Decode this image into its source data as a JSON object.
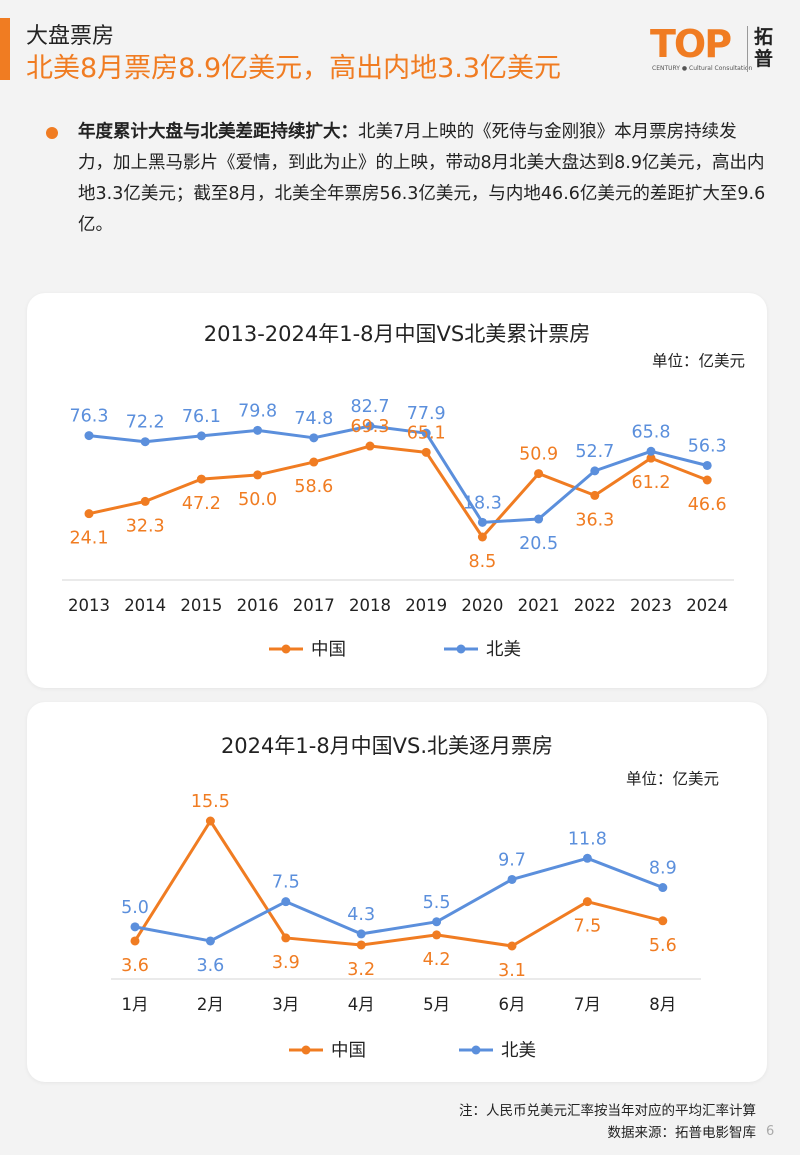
{
  "header": {
    "section_tag": "大盘票房",
    "headline": "北美8月票房8.9亿美元，高出内地3.3亿美元"
  },
  "logo": {
    "mark": "TOP",
    "sub": "CENTURY ● Cultural Consultation",
    "cn": "拓普"
  },
  "summary": {
    "lead": "年度累计大盘与北美差距持续扩大：",
    "body": "北美7月上映的《死侍与金刚狼》本月票房持续发力，加上黑马影片《爱情，到此为止》的上映，带动8月北美大盘达到8.9亿美元，高出内地3.3亿美元；截至8月，北美全年票房56.3亿美元，与内地46.6亿美元的差距扩大至9.6亿。"
  },
  "colors": {
    "china": "#f07c22",
    "na": "#5b8fdc",
    "accent": "#f07c22"
  },
  "chart_data": [
    {
      "type": "line",
      "title": "2013-2024年1-8月中国VS北美累计票房",
      "unit": "单位：亿美元",
      "categories": [
        "2013",
        "2014",
        "2015",
        "2016",
        "2017",
        "2018",
        "2019",
        "2020",
        "2021",
        "2022",
        "2023",
        "2024"
      ],
      "series": [
        {
          "name": "中国",
          "color": "#f07c22",
          "values": [
            24.1,
            32.3,
            47.2,
            50.0,
            58.6,
            69.3,
            65.1,
            8.5,
            50.9,
            36.3,
            61.2,
            46.6
          ],
          "labels": [
            "24.1",
            "32.3",
            "47.2",
            "50.0",
            "58.6",
            "69.3",
            "65.1",
            "8.5",
            "50.9",
            "36.3",
            "61.2",
            "46.6"
          ]
        },
        {
          "name": "北美",
          "color": "#5b8fdc",
          "values": [
            76.3,
            72.2,
            76.1,
            79.8,
            74.8,
            82.7,
            77.9,
            18.3,
            20.5,
            52.7,
            65.8,
            56.3
          ],
          "labels": [
            "76.3",
            "72.2",
            "76.1",
            "79.8",
            "74.8",
            "82.7",
            "77.9",
            "18.3",
            "20.5",
            "52.7",
            "65.8",
            "56.3"
          ]
        }
      ]
    },
    {
      "type": "line",
      "title": "2024年1-8月中国VS.北美逐月票房",
      "unit": "单位：亿美元",
      "categories": [
        "1月",
        "2月",
        "3月",
        "4月",
        "5月",
        "6月",
        "7月",
        "8月"
      ],
      "series": [
        {
          "name": "中国",
          "color": "#f07c22",
          "values": [
            3.6,
            15.5,
            3.9,
            3.2,
            4.2,
            3.1,
            7.5,
            5.6
          ],
          "labels": [
            "3.6",
            "15.5",
            "3.9",
            "3.2",
            "4.2",
            "3.1",
            "7.5",
            "5.6"
          ]
        },
        {
          "name": "北美",
          "color": "#5b8fdc",
          "values": [
            5.0,
            3.6,
            7.5,
            4.3,
            5.5,
            9.7,
            11.8,
            8.9
          ],
          "labels": [
            "5.0",
            "3.6",
            "7.5",
            "4.3",
            "5.5",
            "9.7",
            "11.8",
            "8.9"
          ]
        }
      ]
    }
  ],
  "footer": {
    "note": "注：人民币兑美元汇率按当年对应的平均汇率计算",
    "source": "数据来源：拓普电影智库",
    "page": "6"
  }
}
